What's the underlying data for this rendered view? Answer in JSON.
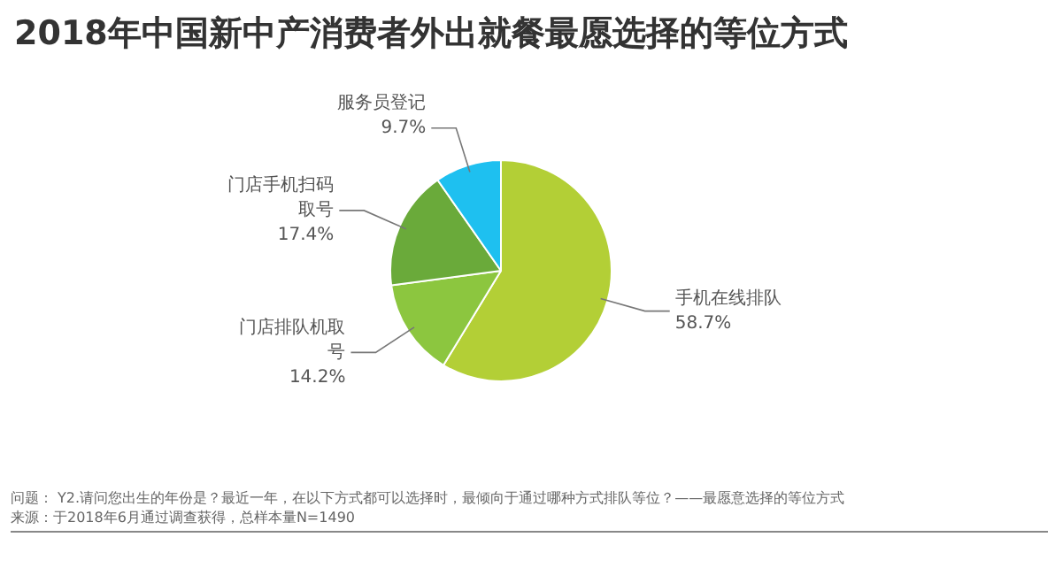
{
  "chart_data": {
    "type": "pie",
    "title": "2018年中国新中产消费者外出就餐最愿选择的等位方式",
    "categories": [
      "手机在线排队",
      "门店排队机取号",
      "门店手机扫码取号",
      "服务员登记"
    ],
    "values": [
      58.7,
      14.2,
      17.4,
      9.7
    ],
    "value_labels": [
      "58.7%",
      "14.2%",
      "17.4%",
      "9.7%"
    ],
    "colors": [
      "#b3cf36",
      "#8cc63f",
      "#6aaa3a",
      "#1ec0f0"
    ],
    "legend": false,
    "annotations": [
      "问题： Y2.请问您出生的年份是？最近一年，在以下方式都可以选择时，最倾向于通过哪种方式排队等位？——最愿意选择的等位方式",
      "来源：于2018年6月通过调查获得，总样本量N=1490"
    ]
  }
}
